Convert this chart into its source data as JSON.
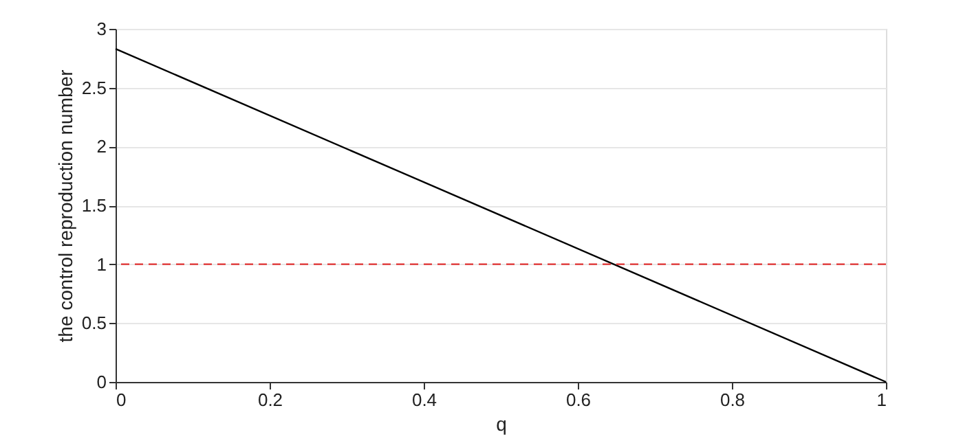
{
  "chart_data": {
    "type": "line",
    "xlabel": "q",
    "ylabel": "the control reproduction number",
    "x": [
      0,
      1
    ],
    "series": [
      {
        "color": "#000000",
        "values": [
          2.83,
          0
        ]
      }
    ],
    "xlim": [
      0,
      1
    ],
    "xticks": [
      0,
      0.2,
      0.4,
      0.6,
      0.8,
      1
    ],
    "ylim": [
      0,
      3
    ],
    "yticks": [
      0,
      0.5,
      1,
      1.5,
      2,
      2.5,
      3
    ],
    "ref_lines": [
      {
        "axis": "y",
        "value": 1,
        "color": "#e03030",
        "line_style": "dashed"
      }
    ],
    "grid": "y",
    "legend": false,
    "marker": "none",
    "line_style": "solid"
  }
}
